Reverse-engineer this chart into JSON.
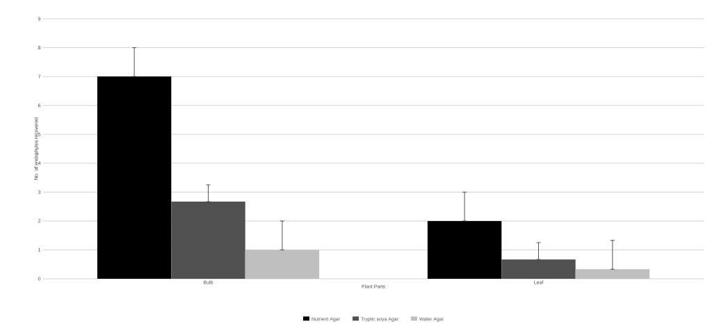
{
  "chart_data": {
    "type": "bar",
    "xlabel": "Plant Parts",
    "ylabel": "No. of endophytes recovered",
    "categories": [
      "Bulb",
      "Leaf"
    ],
    "series": [
      {
        "name": "Nutrient Agar",
        "color": "#000000",
        "values": [
          7,
          2
        ],
        "errors": [
          [
            7,
            8
          ],
          [
            2,
            3
          ]
        ]
      },
      {
        "name": "Tryptic soya Agar",
        "color": "#505050",
        "values": [
          2.67,
          0.67
        ],
        "errors": [
          [
            2.67,
            3.25
          ],
          [
            0.67,
            1.25
          ]
        ]
      },
      {
        "name": "Water Agar",
        "color": "#bfbfbf",
        "values": [
          1,
          0.33
        ],
        "errors": [
          [
            1,
            2
          ],
          [
            0.33,
            1.33
          ]
        ]
      }
    ],
    "ylim": [
      0,
      9
    ],
    "yticks": [
      0,
      1,
      2,
      3,
      4,
      5,
      6,
      7,
      8,
      9
    ],
    "grid": "y",
    "legend": "bottom"
  }
}
